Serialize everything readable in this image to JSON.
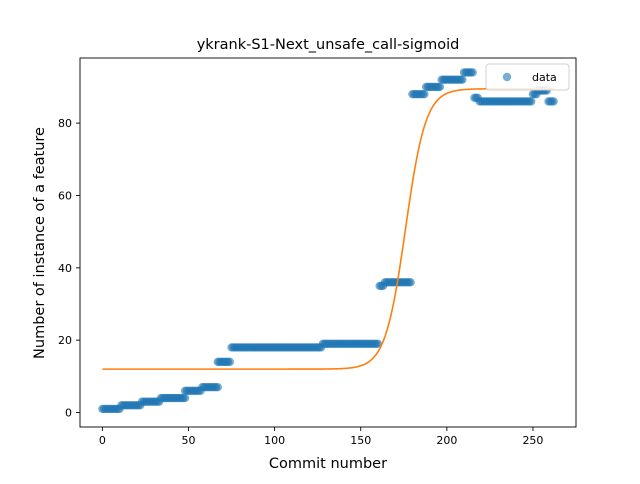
{
  "chart_data": {
    "type": "scatter",
    "title": "ykrank-S1-Next_unsafe_call-sigmoid",
    "xlabel": "Commit number",
    "ylabel": "Number of instance of a feature",
    "xlim": [
      -13,
      275
    ],
    "ylim": [
      -4,
      98
    ],
    "xticks": [
      0,
      50,
      100,
      150,
      200,
      250
    ],
    "yticks": [
      0,
      20,
      40,
      60,
      80
    ],
    "grid": false,
    "legend": {
      "placement": "top-right",
      "entries": [
        "data"
      ]
    },
    "colors": {
      "data": "#1f77b4",
      "fit": "#ff7f0e"
    },
    "series": [
      {
        "name": "data",
        "kind": "scatter",
        "segments": [
          {
            "x_start": 0,
            "x_end": 10,
            "y": 1
          },
          {
            "x_start": 11,
            "x_end": 22,
            "y": 2
          },
          {
            "x_start": 23,
            "x_end": 33,
            "y": 3
          },
          {
            "x_start": 34,
            "x_end": 48,
            "y": 4
          },
          {
            "x_start": 48,
            "x_end": 57,
            "y": 6
          },
          {
            "x_start": 58,
            "x_end": 67,
            "y": 7
          },
          {
            "x_start": 67,
            "x_end": 74,
            "y": 14
          },
          {
            "x_start": 75,
            "x_end": 127,
            "y": 18
          },
          {
            "x_start": 128,
            "x_end": 160,
            "y": 19
          },
          {
            "x_start": 161,
            "x_end": 163,
            "y": 35
          },
          {
            "x_start": 164,
            "x_end": 179,
            "y": 36
          },
          {
            "x_start": 180,
            "x_end": 187,
            "y": 88
          },
          {
            "x_start": 188,
            "x_end": 196,
            "y": 90
          },
          {
            "x_start": 197,
            "x_end": 209,
            "y": 92
          },
          {
            "x_start": 210,
            "x_end": 215,
            "y": 94
          },
          {
            "x_start": 216,
            "x_end": 218,
            "y": 87
          },
          {
            "x_start": 219,
            "x_end": 249,
            "y": 86
          },
          {
            "x_start": 250,
            "x_end": 252,
            "y": 88
          },
          {
            "x_start": 253,
            "x_end": 258,
            "y": 89
          },
          {
            "x_start": 259,
            "x_end": 262,
            "y": 86
          }
        ]
      },
      {
        "name": "fit",
        "kind": "line",
        "function": "sigmoid",
        "params": {
          "lower": 12,
          "upper": 89.5,
          "midpoint": 176,
          "steepness": 0.17
        },
        "x_range": [
          0,
          262
        ]
      }
    ]
  }
}
